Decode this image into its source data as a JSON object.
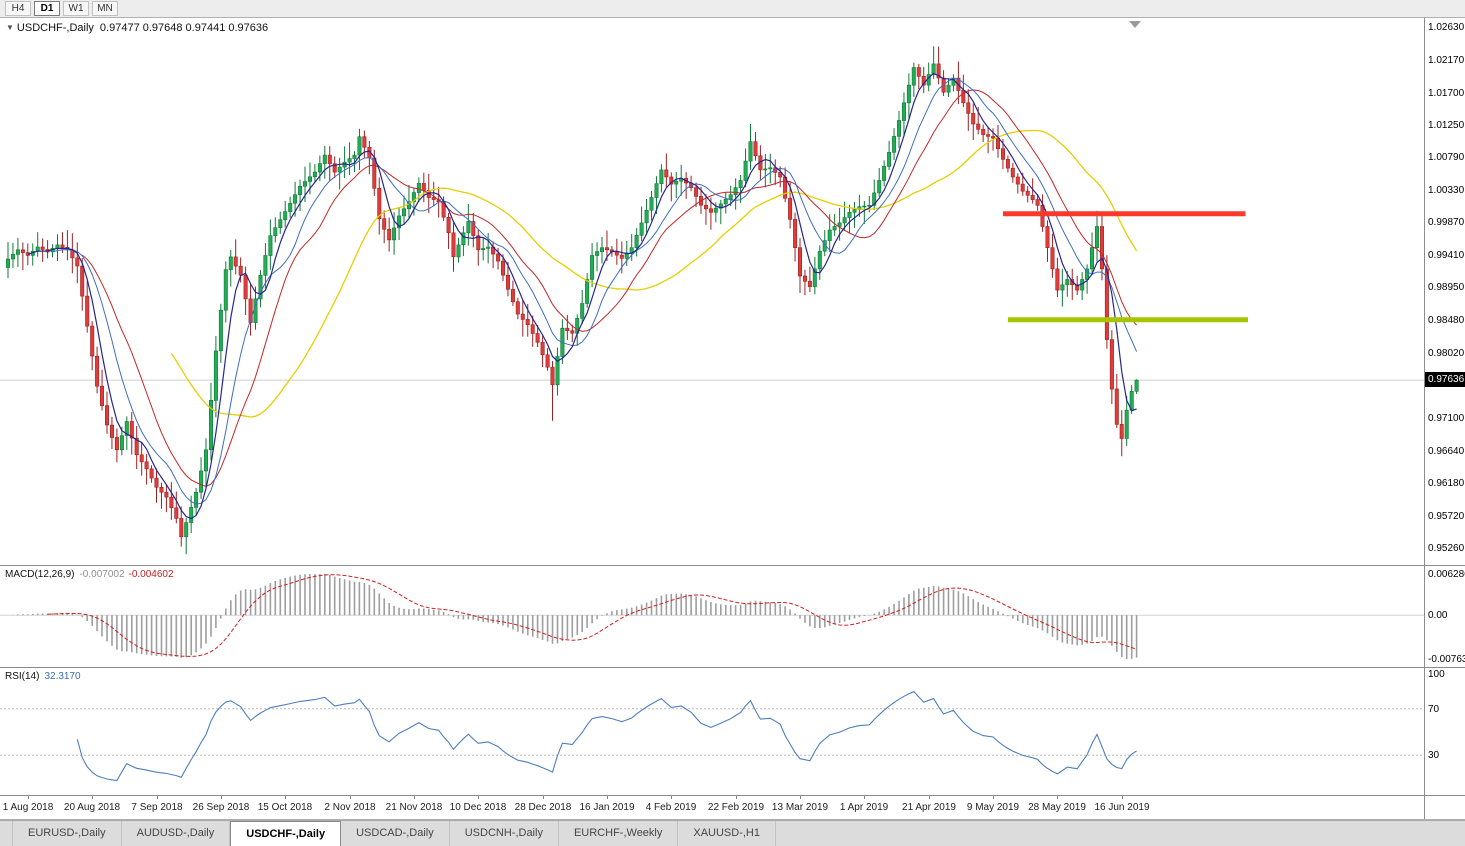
{
  "toolbar": {
    "timeframes": [
      {
        "label": "H4",
        "active": false
      },
      {
        "label": "D1",
        "active": true
      },
      {
        "label": "W1",
        "active": false
      },
      {
        "label": "MN",
        "active": false
      }
    ]
  },
  "chart": {
    "title_symbol": "USDCHF-,Daily",
    "title_ohlc": "0.97477 0.97648 0.97441 0.97636",
    "current_price": "0.97636",
    "price_axis": [
      "1.02630",
      "1.02170",
      "1.01700",
      "1.01250",
      "1.00790",
      "1.00330",
      "0.99870",
      "0.99410",
      "0.98950",
      "0.98480",
      "0.98020",
      "0.97100",
      "0.96640",
      "0.96180",
      "0.95720",
      "0.95260"
    ]
  },
  "colors": {
    "candle_up": "#22ac55",
    "candle_up_border": "#0e7a36",
    "candle_down": "#e03c3c",
    "candle_down_border": "#9e2121",
    "macd_hist": "#9e9e9e",
    "macd_signal": "#d02020",
    "macd_zero_line": "#d4d4d4",
    "rsi_line": "#4f7fbe",
    "rsi_level_line": "#bbbbbb",
    "resistance": "#fa392b",
    "support": "#a8c400",
    "current_price_line": "#cfcfcf",
    "badge_bg": "#000000",
    "badge_text": "#ffffff"
  },
  "macd": {
    "label": "MACD(12,26,9)",
    "value_main": "-0.007002",
    "value_signal": "-0.004602",
    "axis": [
      "0.006286",
      "0.00",
      "-0.007635"
    ]
  },
  "rsi": {
    "label": "RSI(14)",
    "value": "32.3170",
    "axis": [
      "100",
      "70",
      "30"
    ],
    "levels": [
      70,
      30
    ]
  },
  "date_axis": [
    "1 Aug 2018",
    "20 Aug 2018",
    "7 Sep 2018",
    "26 Sep 2018",
    "15 Oct 2018",
    "2 Nov 2018",
    "21 Nov 2018",
    "10 Dec 2018",
    "28 Dec 2018",
    "16 Jan 2019",
    "4 Feb 2019",
    "22 Feb 2019",
    "13 Mar 2019",
    "1 Apr 2019",
    "21 Apr 2019",
    "9 May 2019",
    "28 May 2019",
    "16 Jun 2019"
  ],
  "tabs": [
    {
      "label": "EURUSD-,Daily",
      "active": false
    },
    {
      "label": "AUDUSD-,Daily",
      "active": false
    },
    {
      "label": "USDCHF-,Daily",
      "active": true
    },
    {
      "label": "USDCAD-,Daily",
      "active": false
    },
    {
      "label": "USDCNH-,Daily",
      "active": false
    },
    {
      "label": "EURCHF-,Weekly",
      "active": false
    },
    {
      "label": "XAUUSD-,H1",
      "active": false
    }
  ],
  "chart_data": {
    "type": "candlestick",
    "title": "USDCHF-,Daily",
    "symbol": "USDCHF-",
    "timeframe": "Daily",
    "last_ohlc": {
      "open": 0.97477,
      "high": 0.97648,
      "low": 0.97441,
      "close": 0.97636
    },
    "price_range": {
      "min": 0.9502,
      "max": 1.0276,
      "tick_step": 0.0046
    },
    "num_candles": 229,
    "labels_every_n_candles": 13,
    "first_label_candle_index": 4,
    "close_keyframes": [
      [
        0,
        0.9935
      ],
      [
        2,
        0.9948
      ],
      [
        4,
        0.994
      ],
      [
        6,
        0.9952
      ],
      [
        8,
        0.9945
      ],
      [
        10,
        0.9955
      ],
      [
        12,
        0.9948
      ],
      [
        14,
        0.9925
      ],
      [
        16,
        0.984
      ],
      [
        18,
        0.9755
      ],
      [
        20,
        0.97
      ],
      [
        22,
        0.9665
      ],
      [
        24,
        0.9705
      ],
      [
        26,
        0.9658
      ],
      [
        28,
        0.9638
      ],
      [
        30,
        0.9612
      ],
      [
        32,
        0.9598
      ],
      [
        34,
        0.9568
      ],
      [
        35,
        0.9542
      ],
      [
        36,
        0.9562
      ],
      [
        38,
        0.9605
      ],
      [
        40,
        0.9665
      ],
      [
        42,
        0.9805
      ],
      [
        44,
        0.992
      ],
      [
        45,
        0.9938
      ],
      [
        47,
        0.9912
      ],
      [
        49,
        0.9845
      ],
      [
        51,
        0.9912
      ],
      [
        53,
        0.9968
      ],
      [
        56,
        1.0002
      ],
      [
        59,
        1.0038
      ],
      [
        62,
        1.0058
      ],
      [
        64,
        1.0082
      ],
      [
        66,
        1.0058
      ],
      [
        68,
        1.0072
      ],
      [
        70,
        1.0082
      ],
      [
        71,
        1.0108
      ],
      [
        73,
        1.0078
      ],
      [
        75,
        0.9992
      ],
      [
        77,
        0.9962
      ],
      [
        79,
        0.9996
      ],
      [
        81,
        1.0016
      ],
      [
        83,
        1.0042
      ],
      [
        85,
        1.0022
      ],
      [
        87,
        1.0016
      ],
      [
        89,
        0.9972
      ],
      [
        90,
        0.9938
      ],
      [
        92,
        0.9972
      ],
      [
        93,
        0.9988
      ],
      [
        95,
        0.9948
      ],
      [
        97,
        0.9952
      ],
      [
        99,
        0.9932
      ],
      [
        101,
        0.9892
      ],
      [
        103,
        0.9857
      ],
      [
        105,
        0.9842
      ],
      [
        107,
        0.9817
      ],
      [
        109,
        0.9782
      ],
      [
        110,
        0.9757
      ],
      [
        112,
        0.9837
      ],
      [
        114,
        0.983
      ],
      [
        116,
        0.9872
      ],
      [
        118,
        0.994
      ],
      [
        120,
        0.9951
      ],
      [
        122,
        0.9945
      ],
      [
        124,
        0.9936
      ],
      [
        126,
        0.9951
      ],
      [
        128,
        0.9986
      ],
      [
        130,
        1.0022
      ],
      [
        132,
        1.0061
      ],
      [
        134,
        1.0041
      ],
      [
        136,
        1.0049
      ],
      [
        138,
        1.0036
      ],
      [
        140,
        1.0011
      ],
      [
        142,
        1.0001
      ],
      [
        144,
        1.0013
      ],
      [
        146,
        1.0026
      ],
      [
        148,
        1.0046
      ],
      [
        150,
        1.0101
      ],
      [
        152,
        1.0061
      ],
      [
        154,
        1.0064
      ],
      [
        156,
        1.0051
      ],
      [
        158,
        0.9991
      ],
      [
        160,
        0.9911
      ],
      [
        162,
        0.9896
      ],
      [
        164,
        0.9946
      ],
      [
        166,
        0.9976
      ],
      [
        168,
        0.9986
      ],
      [
        170,
        1.0001
      ],
      [
        172,
        1.0009
      ],
      [
        174,
        1.0011
      ],
      [
        176,
        1.0046
      ],
      [
        178,
        1.0086
      ],
      [
        180,
        1.0131
      ],
      [
        182,
        1.0181
      ],
      [
        183,
        1.0206
      ],
      [
        185,
        1.0181
      ],
      [
        187,
        1.0211
      ],
      [
        189,
        1.0171
      ],
      [
        191,
        1.0191
      ],
      [
        193,
        1.0156
      ],
      [
        195,
        1.0126
      ],
      [
        197,
        1.0111
      ],
      [
        199,
        1.0106
      ],
      [
        201,
        1.0076
      ],
      [
        203,
        1.0051
      ],
      [
        205,
        1.0031
      ],
      [
        207,
        1.0019
      ],
      [
        208,
        1.0011
      ],
      [
        210,
        0.9951
      ],
      [
        212,
        0.9891
      ],
      [
        214,
        0.9906
      ],
      [
        216,
        0.9891
      ],
      [
        218,
        0.9921
      ],
      [
        220,
        0.9981
      ],
      [
        221,
        0.9921
      ],
      [
        222,
        0.9821
      ],
      [
        223,
        0.9751
      ],
      [
        224,
        0.9701
      ],
      [
        225,
        0.9681
      ],
      [
        226,
        0.9721
      ],
      [
        227,
        0.97477
      ],
      [
        228,
        0.97636
      ]
    ],
    "wick_overrides": {
      "35": {
        "low": 0.9528
      },
      "110": {
        "low": 0.9706
      },
      "150": {
        "high": 1.0126
      },
      "187": {
        "high": 1.0236
      },
      "220": {
        "high": 1.0003
      },
      "225": {
        "low": 0.9656
      },
      "228": {
        "high": 0.97648,
        "low": 0.97441
      }
    },
    "overlays": {
      "moving_averages": [
        {
          "period": 34,
          "color": "#e6cf00",
          "width": 1.3
        },
        {
          "period": 16,
          "color": "#c22828",
          "width": 1.0
        },
        {
          "period": 10,
          "color": "#3f6fbf",
          "width": 1.0
        },
        {
          "period": 5,
          "color": "#26268e",
          "width": 1.2
        }
      ],
      "hlines": [
        {
          "name": "resistance-hline",
          "price": 0.9999,
          "color": "#fa392b",
          "width": 5,
          "from_index": 201,
          "to_index": 250
        },
        {
          "name": "support-hline",
          "price": 0.9849,
          "color": "#a8c400",
          "width": 5,
          "from_index": 202,
          "to_index": 250.5
        }
      ]
    },
    "indicators": {
      "macd": {
        "fast": 12,
        "slow": 26,
        "signal": 9,
        "current_main": -0.007002,
        "current_signal": -0.004602,
        "axis_max": 0.006286,
        "axis_min": -0.007635
      },
      "rsi": {
        "period": 14,
        "current": 32.317,
        "levels": [
          30,
          70
        ]
      }
    }
  }
}
